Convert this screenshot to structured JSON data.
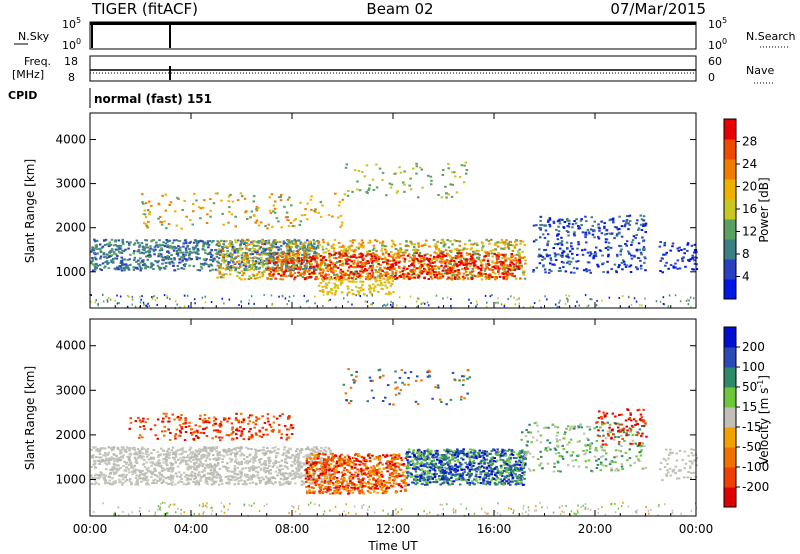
{
  "header": {
    "radar": "TIGER (fitACF)",
    "beam": "Beam 02",
    "date": "07/Mar/2015"
  },
  "status_panels": {
    "nsky_label": "N.Sky",
    "nsearch_label": "N.Search",
    "freq_label_1": "Freq.",
    "freq_label_2": "[MHz]",
    "nave_label": "Nave",
    "cpid_label": "CPID",
    "cpid_text": "normal (fast) 151",
    "noise_ticks": [
      "10^5",
      "10^0"
    ],
    "freq_ticks": [
      "18",
      "8"
    ],
    "nave_ticks": [
      "60",
      "0"
    ]
  },
  "chart_data": [
    {
      "type": "heatmap",
      "title": "",
      "xlabel": "",
      "ylabel": "Slant Range [km]",
      "x_ticks": [
        "00:00",
        "04:00",
        "08:00",
        "12:00",
        "16:00",
        "20:00",
        "00:00"
      ],
      "y_ticks": [
        "1000",
        "2000",
        "3000",
        "4000"
      ],
      "xlim_hours": [
        0,
        24
      ],
      "ylim_km": [
        180,
        4600
      ],
      "colorbar": {
        "label": "Power [dB]",
        "ticks": [
          "4",
          "8",
          "12",
          "16",
          "20",
          "24",
          "28"
        ],
        "colors": [
          "#0018e6",
          "#2a3fc2",
          "#3c7f84",
          "#5aa060",
          "#c8c820",
          "#f0b000",
          "#f07d00",
          "#f04a00",
          "#e80000"
        ]
      },
      "features": [
        {
          "region": "main band",
          "hours": [
            0,
            17.2
          ],
          "range_km": [
            1000,
            1800
          ],
          "power_db": "8-16"
        },
        {
          "region": "strong echoes",
          "hours": [
            7,
            17
          ],
          "range_km": [
            800,
            1500
          ],
          "power_db": "20-30"
        },
        {
          "region": "late band",
          "hours": [
            17.5,
            24
          ],
          "range_km": [
            1000,
            2300
          ],
          "power_db": "4-12"
        }
      ]
    },
    {
      "type": "heatmap",
      "title": "",
      "xlabel": "Time UT",
      "ylabel": "Slant Range [km]",
      "x_ticks": [
        "00:00",
        "04:00",
        "08:00",
        "12:00",
        "16:00",
        "20:00",
        "00:00"
      ],
      "y_ticks": [
        "1000",
        "2000",
        "3000",
        "4000"
      ],
      "xlim_hours": [
        0,
        24
      ],
      "ylim_km": [
        180,
        4600
      ],
      "colorbar": {
        "label": "Velocity [m s^-1]",
        "ticks": [
          "200",
          "100",
          "50",
          "15",
          "-15",
          "-50",
          "-100",
          "-200"
        ],
        "colors": [
          "#0010d0",
          "#2a4ab8",
          "#2f8a6a",
          "#6cc83a",
          "#c0c0b8",
          "#f0a000",
          "#f07000",
          "#f04000",
          "#e00000"
        ]
      },
      "features": [
        {
          "region": "ground scatter",
          "hours": [
            0,
            9.5
          ],
          "range_km": [
            900,
            1800
          ],
          "velocity": "-15 to 15"
        },
        {
          "region": "negative flow",
          "hours": [
            8.5,
            12.5
          ],
          "range_km": [
            700,
            1600
          ],
          "velocity": "-50 to -200"
        },
        {
          "region": "positive flow",
          "hours": [
            12.5,
            17.2
          ],
          "range_km": [
            900,
            1700
          ],
          "velocity": "50 to 200"
        },
        {
          "region": "negative patches",
          "hours": [
            1.5,
            8
          ],
          "range_km": [
            1900,
            2500
          ],
          "velocity": "-100 to -200"
        }
      ]
    }
  ]
}
